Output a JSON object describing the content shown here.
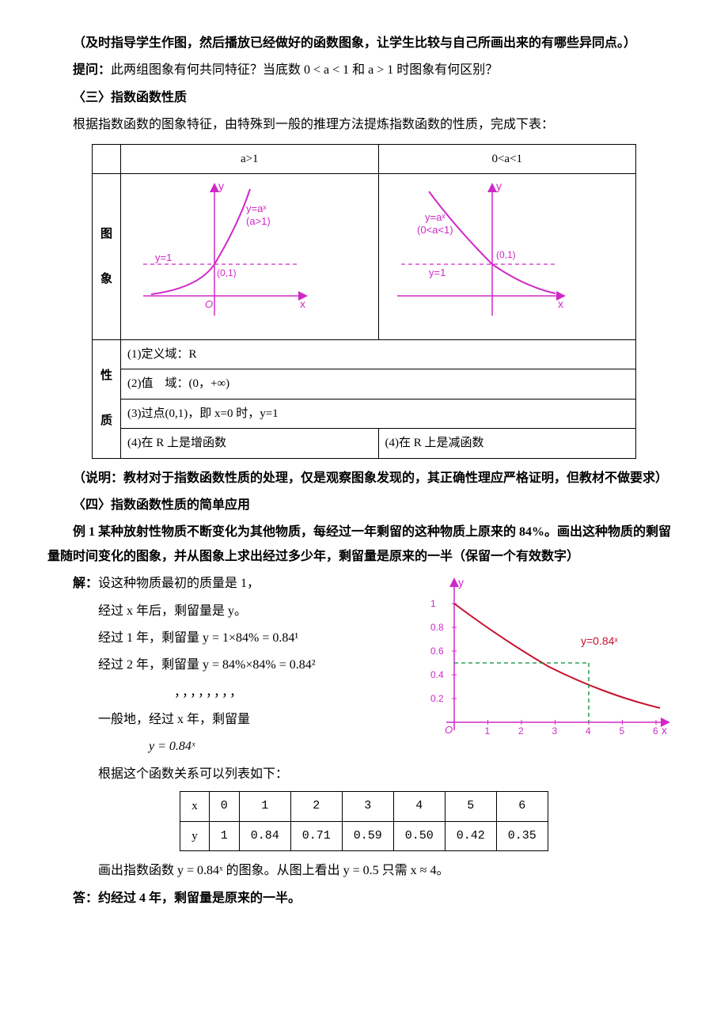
{
  "para": {
    "guide": "（及时指导学生作图，然后播放已经做好的函数图象，让学生比较与自己所画出来的有哪些异同点。）",
    "ask_label": "提问：",
    "ask": "此两组图象有何共同特征？当底数 0 < a < 1 和 a > 1 时图象有何区别？",
    "h3": "〈三〉指数函数性质",
    "intro3": "根据指数函数的图象特征，由特殊到一般的推理方法提炼指数函数的性质，完成下表：",
    "note": "（说明：教材对于指数函数性质的处理，仅是观察图象发现的，其正确性理应严格证明，但教材不做要求）",
    "h4": "〈四〉指数函数性质的简单应用",
    "ex1": "例 1  某种放射性物质不断变化为其他物质，每经过一年剩留的这种物质上原来的 84%。画出这种物质的剩留量随时间变化的图象，并从图象上求出经过多少年，剩留量是原来的一半（保留一个有效数字）",
    "sol_label": "解：",
    "s1": "设这种物质最初的质量是 1，",
    "s2": "经过 x 年后，剩留量是 y。",
    "s3": "经过 1 年，剩留量 y = 1×84% = 0.84¹",
    "s4": "经过 2 年，剩留量 y = 84%×84% = 0.84²",
    "dots": "，，，，，，，，",
    "s5": "一般地，经过 x 年，剩留量",
    "s6": "y = 0.84ˣ",
    "s7": "根据这个函数关系可以列表如下：",
    "conclude": "画出指数函数 y = 0.84ˣ 的图象。从图上看出 y = 0.5 只需 x ≈ 4。",
    "ans_label": "答：",
    "ans": "约经过 4 年，剩留量是原来的一半。"
  },
  "prop_table": {
    "head_a": "a>1",
    "head_b": "0<a<1",
    "row_graph": "图\n\n象",
    "row_prop": "性\n\n质",
    "p1": "(1)定义域：R",
    "p2": "(2)值　域：(0，+∞)",
    "p3": "(3)过点(0,1)，即 x=0 时，y=1",
    "p4a": "(4)在 R 上是增函数",
    "p4b": "(4)在 R 上是减函数"
  },
  "graph_a": {
    "curve_label": "y=aˣ\n(a>1)",
    "yline": "y=1",
    "point": "(0,1)",
    "xlabel": "x",
    "ylabel": "y",
    "origin": "O",
    "axis_color": "#d028c8",
    "curve_color": "#d028c8",
    "text_color": "#d028c8"
  },
  "graph_b": {
    "curve_label": "y=aˣ\n(0<a<1)",
    "yline": "y=1",
    "point": "(0,1)",
    "xlabel": "x",
    "ylabel": "y",
    "axis_color": "#d028c8",
    "curve_color": "#d028c8",
    "text_color": "#d028c8"
  },
  "xy_table": {
    "xlabel": "x",
    "ylabel": "y",
    "x": [
      "0",
      "1",
      "2",
      "3",
      "4",
      "5",
      "6"
    ],
    "y": [
      "1",
      "0.84",
      "0.71",
      "0.59",
      "0.50",
      "0.42",
      "0.35"
    ]
  },
  "decay_graph": {
    "func_label": "y=0.84ˣ",
    "xlabel": "x",
    "ylabel": "y",
    "origin": "O",
    "xticks": [
      "1",
      "2",
      "3",
      "4",
      "5",
      "6"
    ],
    "yticks": [
      "0.2",
      "0.4",
      "0.6",
      "0.8",
      "1"
    ],
    "axis_color": "#d028c8",
    "curve_color": "#c8102e",
    "dash_color": "#008a3a",
    "text_color_axis": "#d028c8",
    "text_color_func": "#c8102e",
    "intersection_x": 4
  }
}
